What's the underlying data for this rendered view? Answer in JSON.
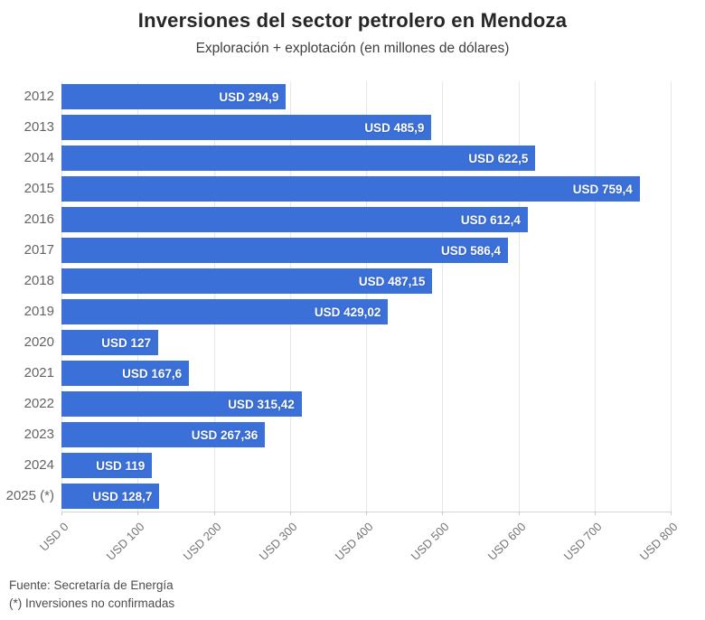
{
  "header": {
    "title": "Inversiones del sector petrolero en Mendoza",
    "subtitle": "Exploración + explotación (en millones de dólares)"
  },
  "footer": {
    "source": "Fuente: Secretaría de Energía",
    "note": "(*) Inversiones no confirmadas"
  },
  "colors": {
    "bar": "#3b70d8",
    "gridline": "#e7e7e7",
    "axis_line": "#d4d4d4",
    "bar_label_text": "#ffffff",
    "category_text": "#646464",
    "tick_text": "#757575"
  },
  "chart_data": {
    "type": "bar",
    "orientation": "horizontal",
    "title": "Inversiones del sector petrolero en Mendoza",
    "subtitle": "Exploración + explotación (en millones de dólares)",
    "categories": [
      "2012",
      "2013",
      "2014",
      "2015",
      "2016",
      "2017",
      "2018",
      "2019",
      "2020",
      "2021",
      "2022",
      "2023",
      "2024",
      "2025 (*)"
    ],
    "values": [
      294.9,
      485.9,
      622.5,
      759.4,
      612.4,
      586.4,
      487.15,
      429.02,
      127,
      167.6,
      315.42,
      267.36,
      119,
      128.7
    ],
    "bar_labels": [
      "USD 294,9",
      "USD 485,9",
      "USD 622,5",
      "USD 759,4",
      "USD 612,4",
      "USD 586,4",
      "USD 487,15",
      "USD 429,02",
      "USD 127",
      "USD 167,6",
      "USD 315,42",
      "USD 267,36",
      "USD 119",
      "USD 128,7"
    ],
    "xlabel": "",
    "ylabel": "",
    "xlim": [
      0,
      800
    ],
    "xticks": [
      0,
      100,
      200,
      300,
      400,
      500,
      600,
      700,
      800
    ],
    "xtick_labels": [
      "USD 0",
      "USD 100",
      "USD 200",
      "USD 300",
      "USD 400",
      "USD 500",
      "USD 600",
      "USD 700",
      "USD 800"
    ],
    "grid": true,
    "legend": false
  }
}
